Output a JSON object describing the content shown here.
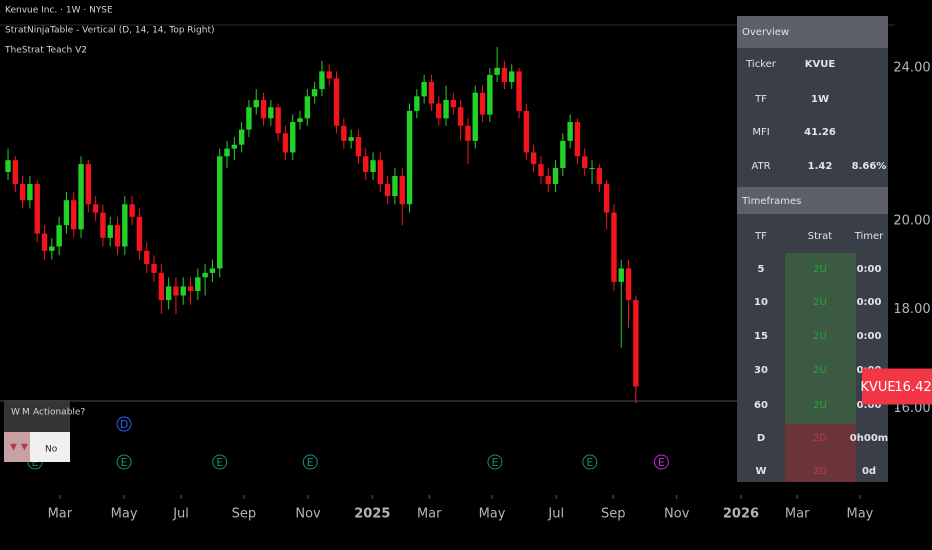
{
  "chart_data": {
    "type": "candlestick",
    "legend_lines": [
      "Kenvue Inc. · 1W · NYSE",
      "StratNinjaTable - Vertical (D, 14, 14, Top Right)",
      "TheStrat Teach V2"
    ],
    "up_color": "#22d12a",
    "down_color": "#f2161c",
    "log_scale": true,
    "xlim": [
      -1.1,
      121.5
    ],
    "xticks": [
      {
        "value": 7.1,
        "label": "Mar"
      },
      {
        "value": 15.9,
        "label": "May"
      },
      {
        "value": 23.7,
        "label": "Jul"
      },
      {
        "value": 32.3,
        "label": "Sep"
      },
      {
        "value": 41.1,
        "label": "Nov"
      },
      {
        "value": 49.9,
        "label": "2025"
      },
      {
        "value": 57.7,
        "label": "Mar"
      },
      {
        "value": 66.3,
        "label": "May"
      },
      {
        "value": 75.1,
        "label": "Jul"
      },
      {
        "value": 82.9,
        "label": "Sep"
      },
      {
        "value": 91.6,
        "label": "Nov"
      },
      {
        "value": 100.4,
        "label": "2026"
      },
      {
        "value": 108.1,
        "label": "Mar"
      },
      {
        "value": 116.7,
        "label": "May"
      }
    ],
    "ylim": [
      14.43,
      26.02
    ],
    "yticks": [
      {
        "value": 16,
        "label": "16.00"
      },
      {
        "value": 18,
        "label": "18.00"
      },
      {
        "value": 20,
        "label": "20.00"
      },
      {
        "value": 24,
        "label": "24.00"
      }
    ],
    "candles": [
      [
        21.2,
        21.8,
        21.0,
        21.5
      ],
      [
        21.5,
        21.6,
        20.7,
        20.9
      ],
      [
        20.9,
        21.1,
        20.3,
        20.5
      ],
      [
        20.5,
        21.1,
        20.3,
        20.9
      ],
      [
        20.9,
        21.0,
        19.5,
        19.7
      ],
      [
        19.7,
        19.9,
        19.1,
        19.3
      ],
      [
        19.3,
        19.6,
        19.1,
        19.4
      ],
      [
        19.4,
        20.1,
        19.2,
        19.9
      ],
      [
        19.9,
        20.7,
        19.7,
        20.5
      ],
      [
        20.5,
        20.7,
        19.6,
        19.8
      ],
      [
        19.8,
        21.6,
        19.6,
        21.4
      ],
      [
        21.4,
        21.5,
        20.2,
        20.4
      ],
      [
        20.4,
        20.6,
        20.0,
        20.2
      ],
      [
        20.2,
        20.4,
        19.4,
        19.6
      ],
      [
        19.6,
        20.1,
        19.4,
        19.9
      ],
      [
        19.9,
        20.1,
        19.2,
        19.4
      ],
      [
        19.4,
        20.6,
        19.2,
        20.4
      ],
      [
        20.4,
        20.6,
        19.9,
        20.1
      ],
      [
        20.1,
        20.3,
        19.1,
        19.3
      ],
      [
        19.3,
        19.5,
        18.8,
        19.0
      ],
      [
        19.0,
        19.2,
        18.6,
        18.8
      ],
      [
        18.8,
        19.0,
        17.9,
        18.2
      ],
      [
        18.2,
        18.7,
        18.0,
        18.5
      ],
      [
        18.5,
        18.7,
        17.9,
        18.3
      ],
      [
        18.3,
        18.7,
        18.1,
        18.5
      ],
      [
        18.5,
        18.7,
        18.1,
        18.4
      ],
      [
        18.4,
        18.9,
        18.2,
        18.7
      ],
      [
        18.7,
        19.0,
        18.3,
        18.8
      ],
      [
        18.8,
        19.1,
        18.6,
        18.9
      ],
      [
        18.9,
        21.8,
        18.7,
        21.6
      ],
      [
        21.6,
        22.0,
        21.3,
        21.8
      ],
      [
        21.8,
        22.1,
        21.5,
        21.9
      ],
      [
        21.9,
        22.5,
        21.7,
        22.3
      ],
      [
        22.3,
        23.1,
        22.1,
        22.9
      ],
      [
        22.9,
        23.4,
        22.7,
        23.1
      ],
      [
        23.1,
        23.3,
        22.4,
        22.6
      ],
      [
        22.6,
        23.1,
        22.4,
        22.9
      ],
      [
        22.9,
        23.0,
        22.0,
        22.2
      ],
      [
        22.2,
        22.4,
        21.5,
        21.7
      ],
      [
        21.7,
        22.7,
        21.5,
        22.5
      ],
      [
        22.5,
        22.8,
        22.3,
        22.6
      ],
      [
        22.6,
        23.4,
        22.4,
        23.2
      ],
      [
        23.2,
        23.6,
        23.0,
        23.4
      ],
      [
        23.4,
        24.2,
        23.2,
        23.9
      ],
      [
        23.9,
        24.1,
        23.5,
        23.7
      ],
      [
        23.7,
        23.9,
        22.2,
        22.4
      ],
      [
        22.4,
        22.6,
        21.8,
        22.0
      ],
      [
        22.0,
        22.3,
        21.8,
        22.1
      ],
      [
        22.1,
        22.3,
        21.4,
        21.6
      ],
      [
        21.6,
        21.8,
        21.0,
        21.2
      ],
      [
        21.2,
        21.7,
        21.0,
        21.5
      ],
      [
        21.5,
        21.7,
        20.7,
        20.9
      ],
      [
        20.9,
        21.1,
        20.4,
        20.6
      ],
      [
        20.6,
        21.3,
        20.4,
        21.1
      ],
      [
        21.1,
        21.3,
        19.9,
        20.4
      ],
      [
        20.4,
        23.0,
        20.2,
        22.8
      ],
      [
        22.8,
        23.4,
        22.6,
        23.2
      ],
      [
        23.2,
        23.8,
        23.0,
        23.6
      ],
      [
        23.6,
        23.8,
        22.8,
        23.0
      ],
      [
        23.0,
        23.2,
        22.4,
        22.6
      ],
      [
        22.6,
        23.5,
        22.4,
        23.1
      ],
      [
        23.1,
        23.3,
        22.7,
        22.9
      ],
      [
        22.9,
        23.1,
        22.0,
        22.4
      ],
      [
        22.4,
        22.6,
        21.4,
        22.0
      ],
      [
        22.0,
        23.5,
        21.8,
        23.3
      ],
      [
        23.3,
        23.5,
        22.5,
        22.7
      ],
      [
        22.7,
        24.0,
        22.5,
        23.8
      ],
      [
        23.8,
        24.6,
        23.6,
        24.0
      ],
      [
        24.0,
        24.2,
        23.4,
        23.6
      ],
      [
        23.6,
        24.1,
        23.4,
        23.9
      ],
      [
        23.9,
        24.0,
        22.6,
        22.8
      ],
      [
        22.8,
        23.0,
        21.5,
        21.7
      ],
      [
        21.7,
        21.9,
        21.2,
        21.4
      ],
      [
        21.4,
        21.6,
        20.9,
        21.1
      ],
      [
        21.1,
        21.3,
        20.7,
        20.9
      ],
      [
        20.9,
        21.5,
        20.7,
        21.3
      ],
      [
        21.3,
        22.2,
        21.1,
        22.0
      ],
      [
        22.0,
        22.7,
        21.8,
        22.5
      ],
      [
        22.5,
        22.6,
        21.4,
        21.6
      ],
      [
        21.6,
        21.8,
        21.1,
        21.3
      ],
      [
        21.3,
        21.5,
        20.9,
        21.3
      ],
      [
        21.3,
        21.4,
        20.7,
        20.9
      ],
      [
        20.9,
        21.0,
        19.8,
        20.2
      ],
      [
        20.2,
        20.4,
        18.4,
        18.6
      ],
      [
        18.6,
        19.1,
        17.2,
        18.9
      ],
      [
        18.9,
        19.1,
        17.6,
        18.2
      ],
      [
        18.2,
        18.3,
        16.1,
        16.42
      ]
    ],
    "last_ticker": "KVUE",
    "last_price": 16.42,
    "events": [
      {
        "x": 3.7,
        "label": "E"
      },
      {
        "x": 15.9,
        "label": "E"
      },
      {
        "x": 15.9,
        "label": "D"
      },
      {
        "x": 29.0,
        "label": "E"
      },
      {
        "x": 41.4,
        "label": "E"
      },
      {
        "x": 66.7,
        "label": "E"
      },
      {
        "x": 79.7,
        "label": "E"
      },
      {
        "x": 89.5,
        "label": "E"
      }
    ]
  },
  "strat_table": {
    "overview_title": "Overview",
    "overview_rows": [
      [
        "Ticker",
        "KVUE"
      ],
      [
        "TF",
        "1W"
      ],
      [
        "MFI",
        "41.26"
      ],
      [
        "ATR",
        "1.42",
        "8.66%"
      ]
    ],
    "timeframes_title": "Timeframes",
    "columns": [
      "TF",
      "Strat",
      "Timer"
    ],
    "rows": [
      [
        "5",
        "2U",
        "0:00"
      ],
      [
        "10",
        "2U",
        "0:00"
      ],
      [
        "15",
        "2U",
        "0:00"
      ],
      [
        "30",
        "2U",
        "0:00"
      ],
      [
        "60",
        "2U",
        "0:00"
      ],
      [
        "D",
        "2D",
        "0h00m"
      ],
      [
        "W",
        "2D",
        "0d"
      ]
    ]
  },
  "actionable_table": {
    "header": [
      "W",
      "M",
      "Actionable?"
    ],
    "row": [
      "▼",
      "▼",
      "No"
    ]
  }
}
